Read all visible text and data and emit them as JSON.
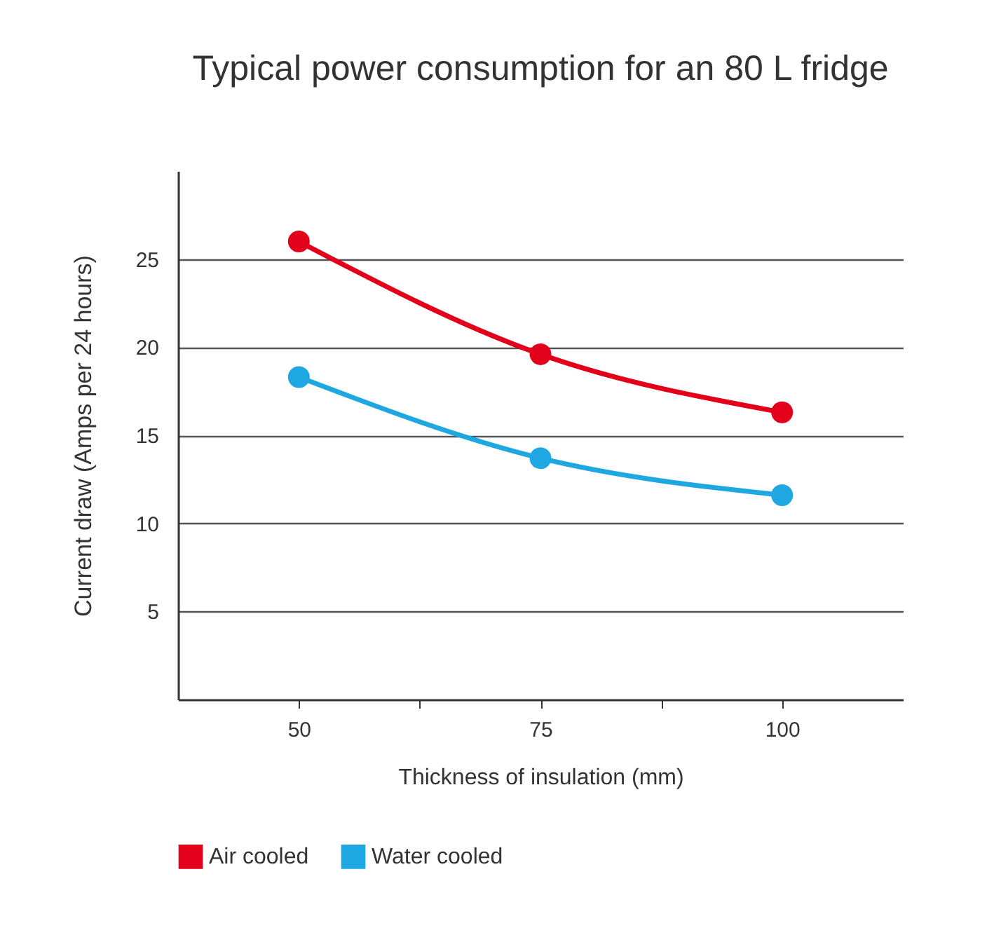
{
  "chart_data": {
    "type": "line",
    "title": "Typical power consumption for an 80 L fridge",
    "xlabel": "Thickness of insulation (mm)",
    "ylabel": "Current draw (Amps per 24 hours)",
    "x": [
      50,
      75,
      100
    ],
    "series": [
      {
        "name": "Air cooled",
        "color": "#e2001a",
        "values": [
          26.0,
          19.6,
          16.3
        ]
      },
      {
        "name": "Water cooled",
        "color": "#1ea7e1",
        "values": [
          18.3,
          13.7,
          11.6
        ]
      }
    ],
    "xlim": [
      37.5,
      112.5
    ],
    "xticks": [
      50,
      {
        "value": 62.5,
        "label": null
      },
      75,
      {
        "value": 87.5,
        "label": null
      },
      100
    ],
    "ylim": [
      0,
      30
    ],
    "yticks": [
      5,
      10,
      15,
      20,
      25
    ],
    "grid": "y",
    "legend": "bottom",
    "marker": "circle",
    "line_style": "solid"
  }
}
